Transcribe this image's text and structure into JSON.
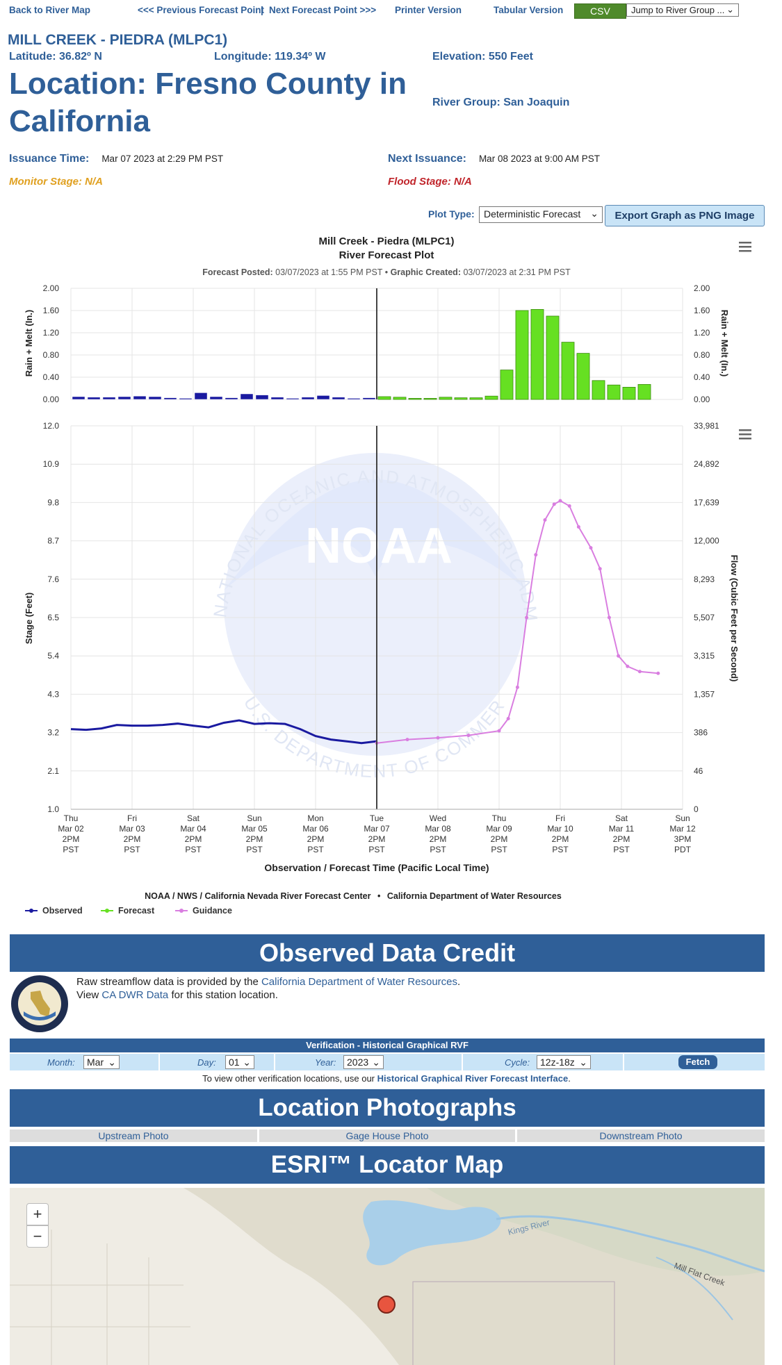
{
  "nav": {
    "back": "Back to River Map",
    "prev": "<<< Previous Forecast Point",
    "sep": "|",
    "next": "Next Forecast Point >>>",
    "printer": "Printer Version",
    "tabular": "Tabular Version",
    "csv": "CSV",
    "jump": "Jump to River Group ..."
  },
  "site": {
    "id": "MILL CREEK - PIEDRA (MLPC1)",
    "latitude": "Latitude: 36.82º N",
    "longitude": "Longitude: 119.34º W",
    "elevation": "Elevation: 550 Feet",
    "location": "Location: Fresno County in California",
    "river_group": "River Group: San Joaquin",
    "issuance_label": "Issuance Time:",
    "issuance_value": "Mar 07 2023 at 2:29 PM PST",
    "next_label": "Next Issuance:",
    "next_value": "Mar 08 2023 at 9:00 AM PST",
    "monitor": "Monitor Stage: N/A",
    "flood": "Flood Stage: N/A"
  },
  "colors": {
    "brand": "#2f5f98",
    "monitor": "#e0a020",
    "flood": "#c0242a",
    "observed": "#1a1aa0",
    "forecast": "#66e022",
    "guidance": "#d97ee0"
  },
  "plot_controls": {
    "label": "Plot Type:",
    "selected": "Deterministic Forecast",
    "export": "Export Graph as PNG Image"
  },
  "chart_data": {
    "type": "line",
    "title": "Mill Creek - Piedra (MLPC1)",
    "subtitle": "River Forecast Plot",
    "posted_label": "Forecast Posted:",
    "posted_value": "03/07/2023 at 1:55 PM PST",
    "bullet": "•",
    "created_label": "Graphic Created:",
    "created_value": "03/07/2023 at 2:31 PM PST",
    "xlabel": "Observation / Forecast Time (Pacific Local Time)",
    "x_ticks": [
      [
        "Thu",
        "Mar 02",
        "2PM",
        "PST"
      ],
      [
        "Fri",
        "Mar 03",
        "2PM",
        "PST"
      ],
      [
        "Sat",
        "Mar 04",
        "2PM",
        "PST"
      ],
      [
        "Sun",
        "Mar 05",
        "2PM",
        "PST"
      ],
      [
        "Mon",
        "Mar 06",
        "2PM",
        "PST"
      ],
      [
        "Tue",
        "Mar 07",
        "2PM",
        "PST"
      ],
      [
        "Wed",
        "Mar 08",
        "2PM",
        "PST"
      ],
      [
        "Thu",
        "Mar 09",
        "2PM",
        "PST"
      ],
      [
        "Fri",
        "Mar 10",
        "2PM",
        "PST"
      ],
      [
        "Sat",
        "Mar 11",
        "2PM",
        "PST"
      ],
      [
        "Sun",
        "Mar 12",
        "3PM",
        "PDT"
      ]
    ],
    "x_range_days": [
      0,
      10
    ],
    "now_day": 5,
    "precip": {
      "ylabel": "Rain + Melt (In.)",
      "y_ticks": [
        "0.00",
        "0.40",
        "0.80",
        "1.20",
        "1.60",
        "2.00"
      ],
      "ylim": [
        0,
        2.0
      ],
      "bar_width_days": 0.25,
      "observed": [
        0.05,
        0.04,
        0.04,
        0.05,
        0.06,
        0.05,
        0.03,
        0.02,
        0.12,
        0.05,
        0.03,
        0.1,
        0.08,
        0.04,
        0.02,
        0.04,
        0.07,
        0.04,
        0.02,
        0.03
      ],
      "forecast": [
        0.05,
        0.04,
        0.02,
        0.02,
        0.04,
        0.03,
        0.03,
        0.06,
        0.53,
        1.6,
        1.62,
        1.5,
        1.03,
        0.83,
        0.34,
        0.26,
        0.22,
        0.27
      ]
    },
    "stage": {
      "ylabel": "Stage (Feet)",
      "y2label": "Flow (Cubic Feet per Second)",
      "y_ticks": [
        "1.0",
        "2.1",
        "3.2",
        "4.3",
        "5.4",
        "6.5",
        "7.6",
        "8.7",
        "9.8",
        "10.9",
        "12.0"
      ],
      "y2_ticks": [
        "0",
        "46",
        "386",
        "1,357",
        "3,315",
        "5,507",
        "8,293",
        "12,000",
        "17,639",
        "24,892",
        "33,981"
      ],
      "ylim": [
        1.0,
        12.0
      ],
      "observed": [
        [
          0,
          3.3
        ],
        [
          0.25,
          3.28
        ],
        [
          0.5,
          3.32
        ],
        [
          0.75,
          3.42
        ],
        [
          1.0,
          3.4
        ],
        [
          1.25,
          3.4
        ],
        [
          1.5,
          3.42
        ],
        [
          1.75,
          3.46
        ],
        [
          2.0,
          3.4
        ],
        [
          2.25,
          3.35
        ],
        [
          2.5,
          3.48
        ],
        [
          2.75,
          3.55
        ],
        [
          3.0,
          3.45
        ],
        [
          3.25,
          3.47
        ],
        [
          3.5,
          3.45
        ],
        [
          3.75,
          3.3
        ],
        [
          4.0,
          3.1
        ],
        [
          4.25,
          3.0
        ],
        [
          4.5,
          2.95
        ],
        [
          4.75,
          2.9
        ],
        [
          5.0,
          2.95
        ]
      ],
      "guidance": [
        [
          5.0,
          2.9
        ],
        [
          5.5,
          3.0
        ],
        [
          6.0,
          3.05
        ],
        [
          6.5,
          3.12
        ],
        [
          7.0,
          3.25
        ],
        [
          7.15,
          3.6
        ],
        [
          7.3,
          4.5
        ],
        [
          7.45,
          6.5
        ],
        [
          7.6,
          8.3
        ],
        [
          7.75,
          9.3
        ],
        [
          7.9,
          9.75
        ],
        [
          8.0,
          9.85
        ],
        [
          8.15,
          9.7
        ],
        [
          8.3,
          9.1
        ],
        [
          8.5,
          8.5
        ],
        [
          8.65,
          7.9
        ],
        [
          8.8,
          6.5
        ],
        [
          8.95,
          5.4
        ],
        [
          9.1,
          5.1
        ],
        [
          9.3,
          4.95
        ],
        [
          9.6,
          4.9
        ]
      ]
    },
    "credits": "NOAA / NWS / California Nevada River Forecast Center",
    "credits_bullet": "•",
    "credits2": "California Department of Water Resources",
    "legend": [
      {
        "name": "Observed",
        "color": "#1a1aa0"
      },
      {
        "name": "Forecast",
        "color": "#66e022"
      },
      {
        "name": "Guidance",
        "color": "#d97ee0"
      }
    ],
    "watermark": "NOAA",
    "watermark_ring_top": "NATIONAL OCEANIC AND ATMOSPHERIC ADMINISTRATION",
    "watermark_ring_bottom": "U.S. DEPARTMENT OF COMMERCE"
  },
  "observed_credit": {
    "title": "Observed Data Credit",
    "line1_prefix": "Raw streamflow data is provided by the",
    "line1_link": "California Department of Water Resources",
    "line1_suffix": ".",
    "line2_prefix": "View",
    "line2_link": "CA DWR Data",
    "line2_suffix": "for this station location."
  },
  "verification": {
    "title": "Verification - Historical Graphical RVF",
    "month_label": "Month:",
    "month": "Mar",
    "day_label": "Day:",
    "day": "01",
    "year_label": "Year:",
    "year": "2023",
    "cycle_label": "Cycle:",
    "cycle": "12z-18z",
    "fetch": "Fetch",
    "note_prefix": "To view other verification locations, use our",
    "note_link": "Historical Graphical River Forecast Interface",
    "note_suffix": "."
  },
  "photos": {
    "title": "Location Photographs",
    "upstream": "Upstream Photo",
    "gage": "Gage House Photo",
    "downstream": "Downstream Photo"
  },
  "map": {
    "title": "ESRI™ Locator Map",
    "zoom_in": "+",
    "zoom_out": "−",
    "river_label": "Kings River",
    "creek_label": "Mill Flat Creek"
  }
}
